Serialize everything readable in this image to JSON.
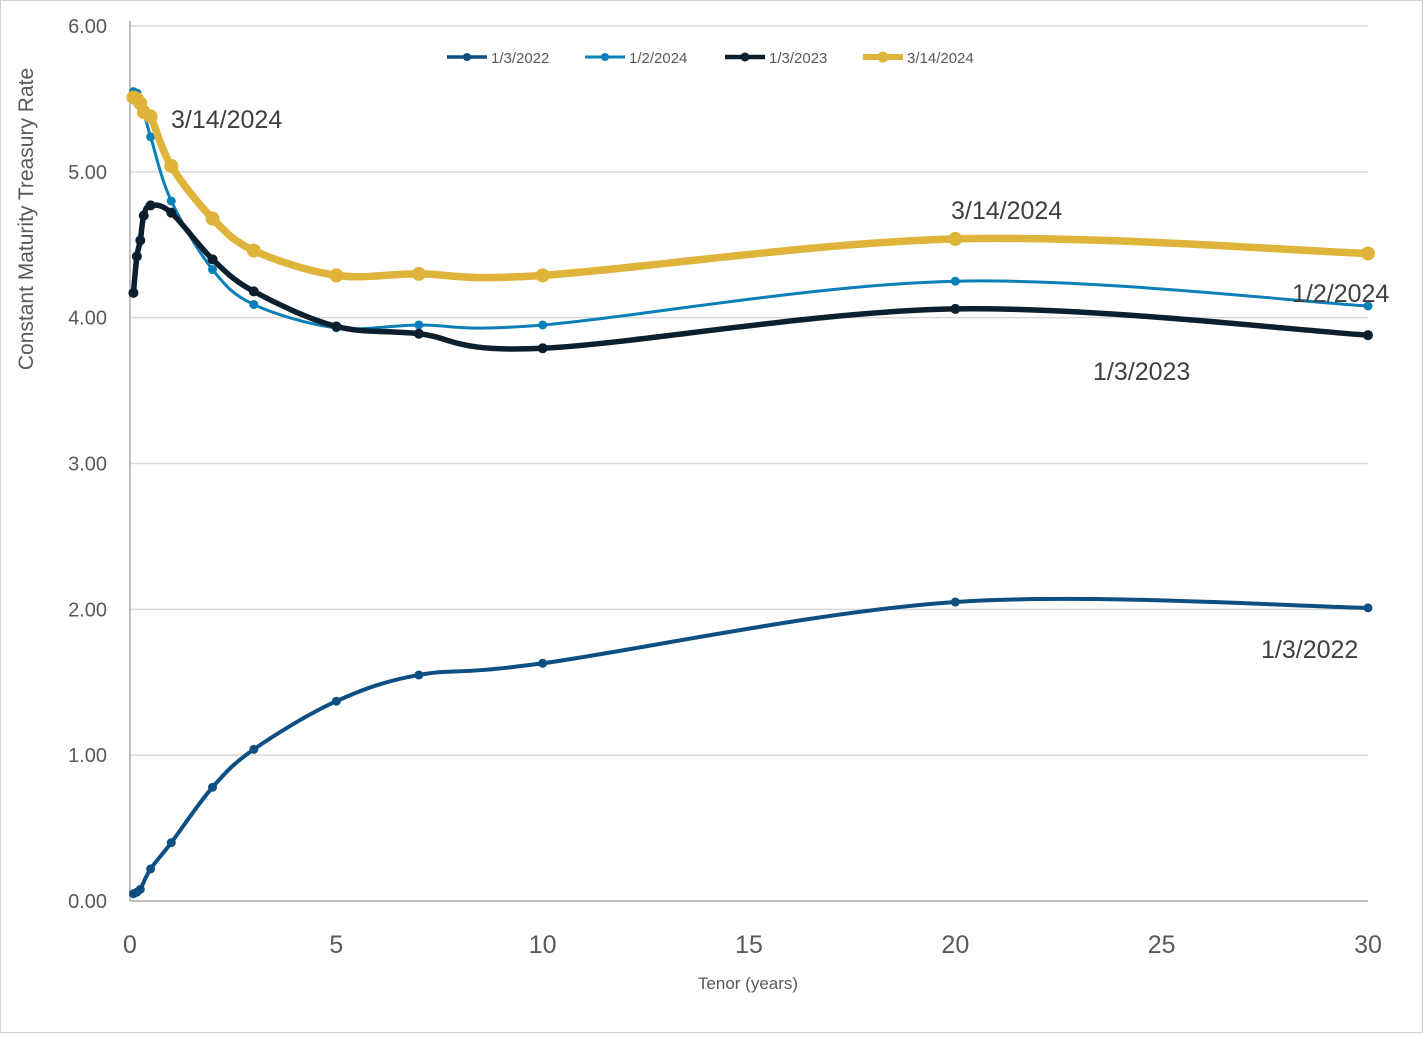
{
  "chart_data": {
    "type": "line",
    "title": "",
    "xlabel": "Tenor (years)",
    "ylabel": "Constant Maturity Treasury Rate",
    "xlim": [
      0,
      30
    ],
    "ylim": [
      0,
      6
    ],
    "x_ticks": [
      "0",
      "5",
      "10",
      "15",
      "20",
      "25",
      "30"
    ],
    "y_ticks": [
      "0.00",
      "1.00",
      "2.00",
      "3.00",
      "4.00",
      "5.00",
      "6.00"
    ],
    "grid": "horizontal",
    "legend_position": "top",
    "series": [
      {
        "name": "1/3/2022",
        "color": "#0d4f82",
        "x": [
          0.0833,
          0.1667,
          0.25,
          0.5,
          1,
          2,
          3,
          5,
          7,
          10,
          20,
          30
        ],
        "values": [
          0.05,
          0.06,
          0.08,
          0.22,
          0.4,
          0.78,
          1.04,
          1.37,
          1.55,
          1.63,
          2.05,
          2.01
        ]
      },
      {
        "name": "1/2/2024",
        "color": "#0b7fb8",
        "x": [
          0.0833,
          0.1667,
          0.25,
          0.3333,
          0.5,
          1,
          2,
          3,
          5,
          7,
          10,
          20,
          30
        ],
        "values": [
          5.55,
          5.54,
          5.46,
          5.41,
          5.24,
          4.8,
          4.33,
          4.09,
          3.93,
          3.95,
          3.95,
          4.25,
          4.08
        ]
      },
      {
        "name": "1/3/2023",
        "color": "#0b1f2e",
        "x": [
          0.0833,
          0.1667,
          0.25,
          0.3333,
          0.5,
          1,
          2,
          3,
          5,
          7,
          10,
          20,
          30
        ],
        "values": [
          4.17,
          4.42,
          4.53,
          4.7,
          4.77,
          4.72,
          4.4,
          4.18,
          3.94,
          3.89,
          3.79,
          4.06,
          3.88
        ]
      },
      {
        "name": "3/14/2024",
        "color": "#dfb43a",
        "x": [
          0.0833,
          0.1667,
          0.25,
          0.3333,
          0.5,
          1,
          2,
          3,
          5,
          7,
          10,
          20,
          30
        ],
        "values": [
          5.51,
          5.5,
          5.47,
          5.41,
          5.38,
          5.04,
          4.68,
          4.46,
          4.29,
          4.3,
          4.29,
          4.54,
          4.44
        ]
      }
    ],
    "annotations": [
      {
        "text": "3/14/2024",
        "x": 1,
        "y": 5.5
      },
      {
        "text": "3/14/2024",
        "x": 20,
        "y": 4.8
      },
      {
        "text": "1/2/2024",
        "x": 29,
        "y": 4.2
      },
      {
        "text": "1/3/2023",
        "x": 25,
        "y": 3.6
      },
      {
        "text": "1/3/2022",
        "x": 29,
        "y": 1.75
      }
    ]
  }
}
